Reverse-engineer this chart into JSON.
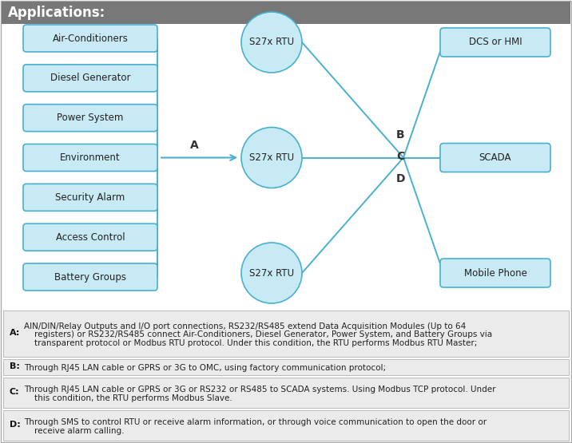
{
  "title": "Applications:",
  "title_bg": "#787878",
  "title_color": "#ffffff",
  "left_boxes": [
    "Air-Conditioners",
    "Diesel Generator",
    "Power System",
    "Environment",
    "Security Alarm",
    "Access Control",
    "Battery Groups"
  ],
  "center_circles": [
    "S27x RTU",
    "S27x RTU",
    "S27x RTU"
  ],
  "right_boxes": [
    "DCS or HMI",
    "SCADA",
    "Mobile Phone"
  ],
  "box_fill": "#c8eaf5",
  "box_edge": "#4ab0d0",
  "circle_fill": "#c8eaf5",
  "circle_edge": "#4ab0d0",
  "arrow_color": "#4ab0d0",
  "text_color": "#222222",
  "bg_color": "#ffffff",
  "desc_bg": "#ebebeb",
  "desc_border": "#bbbbbb",
  "outer_border": "#aaaaaa",
  "descriptions": [
    {
      "label": "A",
      "line1": "AIN/DIN/Relay Outputs and I/O port connections, RS232/RS485 extend Data Acquisition Modules (Up to 64",
      "line2": "    registers) or RS232/RS485 connect Air-Conditioners, Diesel Generator, Power System, and Battery Groups via",
      "line3": "    transparent protocol or Modbus RTU protocol. Under this condition, the RTU performs Modbus RTU Master;"
    },
    {
      "label": "B",
      "line1": "Through RJ45 LAN cable or GPRS or 3G to OMC, using factory communication protocol;",
      "line2": "",
      "line3": ""
    },
    {
      "label": "C",
      "line1": "Through RJ45 LAN cable or GPRS or 3G or RS232 or RS485 to SCADA systems. Using Modbus TCP protocol. Under",
      "line2": "    this condition, the RTU performs Modbus Slave.",
      "line3": ""
    },
    {
      "label": "D",
      "line1": "Through SMS to control RTU or receive alarm information, or through voice communication to open the door or",
      "line2": "    receive alarm calling.",
      "line3": ""
    }
  ]
}
